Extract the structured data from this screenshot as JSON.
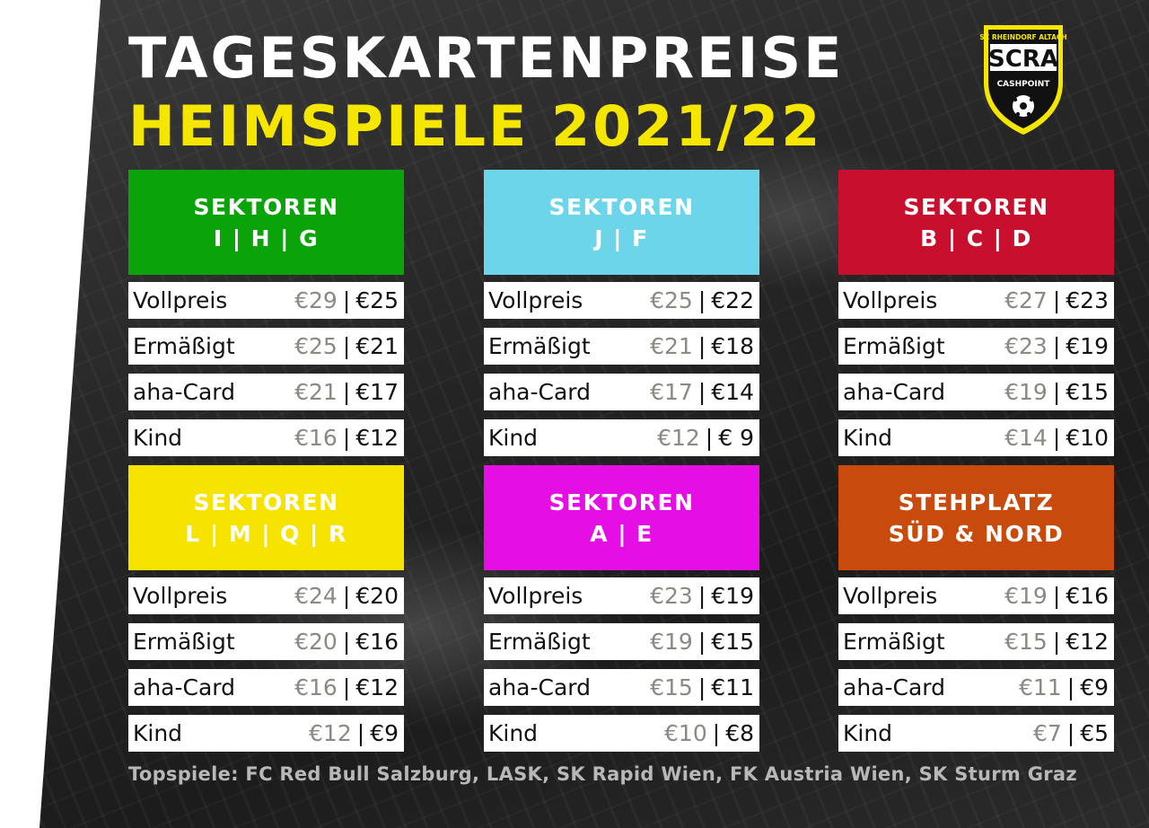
{
  "title": {
    "line1": "TAGESKARTENPREISE",
    "line2": "HEIMSPIELE 2021/22"
  },
  "logo": {
    "arc_text": "SC RHEINDORF ALTACH",
    "wordmark": "SCRA",
    "sponsor": "CASHPOINT",
    "colors": {
      "shield": "#111111",
      "accent": "#f5e600"
    },
    "icon": "football-icon"
  },
  "blocks": [
    {
      "color": "#0aa30a",
      "label1": "SEKTOREN",
      "label2": "I | H | G",
      "rows": [
        {
          "label": "Vollpreis",
          "price1": "€29",
          "sep": "|",
          "price2": "€25"
        },
        {
          "label": "Ermäßigt",
          "price1": "€25",
          "sep": "|",
          "price2": "€21"
        },
        {
          "label": "aha-Card",
          "price1": "€21",
          "sep": "|",
          "price2": "€17"
        },
        {
          "label": "Kind",
          "price1": "€16",
          "sep": "|",
          "price2": "€12"
        }
      ]
    },
    {
      "color": "#6dd5ea",
      "label1": "SEKTOREN",
      "label2": "J | F",
      "rows": [
        {
          "label": "Vollpreis",
          "price1": "€25",
          "sep": "|",
          "price2": "€22"
        },
        {
          "label": "Ermäßigt",
          "price1": "€21",
          "sep": "|",
          "price2": "€18"
        },
        {
          "label": "aha-Card",
          "price1": "€17",
          "sep": "|",
          "price2": "€14"
        },
        {
          "label": "Kind",
          "price1": "€12",
          "sep": "|",
          "price2": "€ 9"
        }
      ]
    },
    {
      "color": "#c8102e",
      "label1": "SEKTOREN",
      "label2": "B | C | D",
      "rows": [
        {
          "label": "Vollpreis",
          "price1": "€27",
          "sep": "|",
          "price2": "€23"
        },
        {
          "label": "Ermäßigt",
          "price1": "€23",
          "sep": "|",
          "price2": "€19"
        },
        {
          "label": "aha-Card",
          "price1": "€19",
          "sep": "|",
          "price2": "€15"
        },
        {
          "label": "Kind",
          "price1": "€14",
          "sep": "|",
          "price2": "€10"
        }
      ]
    },
    {
      "color": "#f7e300",
      "label1": "SEKTOREN",
      "label2": "L | M | Q | R",
      "rows": [
        {
          "label": "Vollpreis",
          "price1": "€24",
          "sep": "|",
          "price2": "€20"
        },
        {
          "label": "Ermäßigt",
          "price1": "€20",
          "sep": "|",
          "price2": "€16"
        },
        {
          "label": "aha-Card",
          "price1": "€16",
          "sep": "|",
          "price2": "€12"
        },
        {
          "label": "Kind",
          "price1": "€12",
          "sep": "|",
          "price2": "€9"
        }
      ]
    },
    {
      "color": "#e50fe5",
      "label1": "SEKTOREN",
      "label2": "A | E",
      "rows": [
        {
          "label": "Vollpreis",
          "price1": "€23",
          "sep": "|",
          "price2": "€19"
        },
        {
          "label": "Ermäßigt",
          "price1": "€19",
          "sep": "|",
          "price2": "€15"
        },
        {
          "label": "aha-Card",
          "price1": "€15",
          "sep": "|",
          "price2": "€11"
        },
        {
          "label": "Kind",
          "price1": "€10",
          "sep": "|",
          "price2": "€8"
        }
      ]
    },
    {
      "color": "#c84a0c",
      "label1": "STEHPLATZ",
      "label2": "SÜD & NORD",
      "rows": [
        {
          "label": "Vollpreis",
          "price1": "€19",
          "sep": "|",
          "price2": "€16"
        },
        {
          "label": "Ermäßigt",
          "price1": "€15",
          "sep": "|",
          "price2": "€12"
        },
        {
          "label": "aha-Card",
          "price1": "€11",
          "sep": "|",
          "price2": "€9"
        },
        {
          "label": "Kind",
          "price1": "€7",
          "sep": "|",
          "price2": "€5"
        }
      ]
    }
  ],
  "footer": "Topspiele: FC Red Bull Salzburg, LASK, SK Rapid Wien, FK Austria Wien, SK Sturm Graz"
}
